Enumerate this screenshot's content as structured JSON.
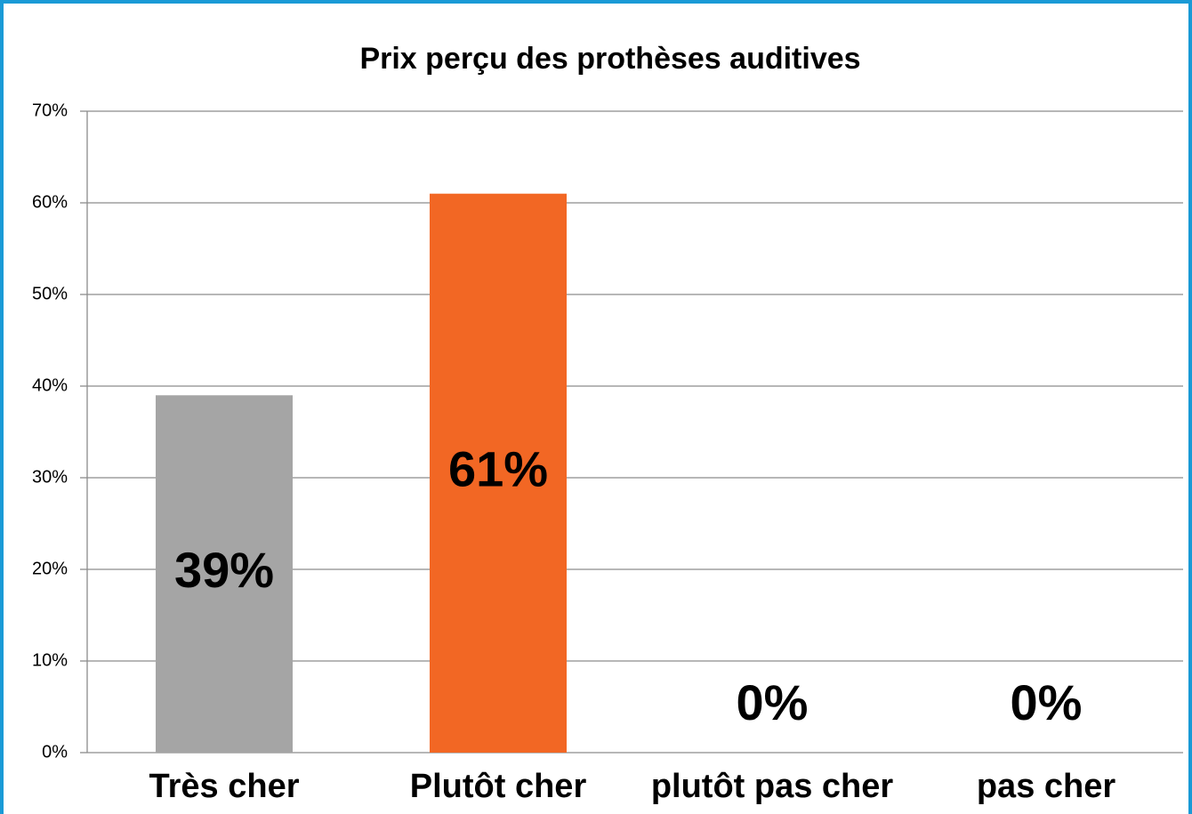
{
  "chart_data": {
    "type": "bar",
    "title": "Prix perçu des prothèses auditives",
    "categories": [
      "Très cher",
      "Plutôt cher",
      "plutôt pas cher",
      "pas cher"
    ],
    "values": [
      39,
      61,
      0,
      0
    ],
    "value_labels": [
      "39%",
      "61%",
      "0%",
      "0%"
    ],
    "colors": [
      "#a5a5a5",
      "#f26724",
      "#a5a5a5",
      "#f26724"
    ],
    "ylim": [
      0,
      70
    ],
    "yticks": [
      {
        "value": 0,
        "label": "0%"
      },
      {
        "value": 10,
        "label": "10%"
      },
      {
        "value": 20,
        "label": "20%"
      },
      {
        "value": 30,
        "label": "30%"
      },
      {
        "value": 40,
        "label": "40%"
      },
      {
        "value": 50,
        "label": "50%"
      },
      {
        "value": 60,
        "label": "60%"
      },
      {
        "value": 70,
        "label": "70%"
      }
    ],
    "grid": true
  }
}
